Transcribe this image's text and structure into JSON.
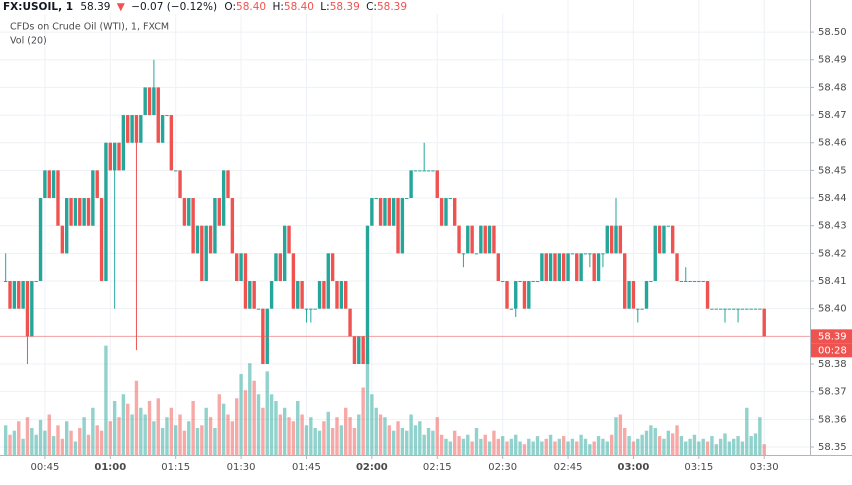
{
  "header": {
    "symbol": "FX:USOIL, 1",
    "last": "58.39",
    "arrow": "▼",
    "change": "−0.07 (−0.12%)",
    "ohlc": [
      {
        "label": "O:",
        "value": "58.40"
      },
      {
        "label": "H:",
        "value": "58.40"
      },
      {
        "label": "L:",
        "value": "58.39"
      },
      {
        "label": "C:",
        "value": "58.39"
      }
    ]
  },
  "chart_data": {
    "type": "candlestick",
    "subtitle": "CFDs on Crude Oil (WTI), 1, FXCM",
    "volume_label": "Vol (20)",
    "up_color": "#26a69a",
    "down_color": "#ef5350",
    "last_price": 58.39,
    "countdown": "00:28",
    "xlim": [
      -1.3,
      184.5
    ],
    "xticks": [
      {
        "value": 9,
        "label": "00:45"
      },
      {
        "value": 24,
        "label": "01:00"
      },
      {
        "value": 39,
        "label": "01:15"
      },
      {
        "value": 54,
        "label": "01:30"
      },
      {
        "value": 69,
        "label": "01:45"
      },
      {
        "value": 84,
        "label": "02:00"
      },
      {
        "value": 99,
        "label": "02:15"
      },
      {
        "value": 114,
        "label": "02:30"
      },
      {
        "value": 129,
        "label": "02:45"
      },
      {
        "value": 144,
        "label": "03:00"
      },
      {
        "value": 159,
        "label": "03:15"
      },
      {
        "value": 174,
        "label": "03:30"
      }
    ],
    "ylim": [
      58.3471,
      58.5116
    ],
    "yticks": [
      58.35,
      58.36,
      58.37,
      58.38,
      58.39,
      {
        "value": 58.4,
        "label": "58.40"
      },
      58.41,
      58.42,
      58.43,
      58.44,
      58.45,
      58.46,
      58.47,
      58.48,
      58.49,
      {
        "value": 58.5,
        "label": "58.50"
      }
    ],
    "grid": true,
    "candles": {
      "open": [
        58.41,
        58.41,
        58.4,
        58.41,
        58.4,
        58.41,
        58.39,
        58.41,
        58.41,
        58.44,
        58.45,
        58.44,
        58.45,
        58.43,
        58.42,
        58.44,
        58.43,
        58.44,
        58.43,
        58.44,
        58.43,
        58.45,
        58.44,
        58.41,
        58.46,
        58.45,
        58.46,
        58.45,
        58.47,
        58.46,
        58.47,
        58.46,
        58.47,
        58.48,
        58.47,
        58.48,
        58.46,
        58.47,
        58.47,
        58.45,
        58.45,
        58.44,
        58.43,
        58.44,
        58.42,
        58.43,
        58.41,
        58.43,
        58.42,
        58.44,
        58.43,
        58.45,
        58.44,
        58.42,
        58.41,
        58.42,
        58.4,
        58.41,
        58.4,
        58.4,
        58.38,
        58.4,
        58.41,
        58.42,
        58.41,
        58.43,
        58.42,
        58.4,
        58.41,
        58.4,
        58.4,
        58.4,
        58.4,
        58.41,
        58.4,
        58.42,
        58.41,
        58.4,
        58.41,
        58.4,
        58.39,
        58.38,
        58.39,
        58.38,
        58.43,
        58.44,
        58.44,
        58.43,
        58.44,
        58.43,
        58.44,
        58.42,
        58.44,
        58.44,
        58.45,
        58.45,
        58.45,
        58.45,
        58.45,
        58.45,
        58.44,
        58.43,
        58.44,
        58.44,
        58.43,
        58.42,
        58.42,
        58.43,
        58.42,
        58.42,
        58.43,
        58.42,
        58.43,
        58.42,
        58.41,
        58.41,
        58.4,
        58.4,
        58.41,
        58.41,
        58.4,
        58.41,
        58.41,
        58.41,
        58.42,
        58.41,
        58.42,
        58.41,
        58.42,
        58.41,
        58.42,
        58.42,
        58.41,
        58.42,
        58.42,
        58.42,
        58.41,
        58.42,
        58.42,
        58.43,
        58.42,
        58.43,
        58.42,
        58.4,
        58.41,
        58.4,
        58.4,
        58.4,
        58.41,
        58.41,
        58.43,
        58.42,
        58.43,
        58.43,
        58.42,
        58.41,
        58.41,
        58.41,
        58.41,
        58.41,
        58.41,
        58.41,
        58.4,
        58.4,
        58.4,
        58.4,
        58.4,
        58.4,
        58.4,
        58.4,
        58.4,
        58.4,
        58.4,
        58.4,
        58.4
      ],
      "high": [
        58.42,
        58.41,
        58.41,
        58.41,
        58.41,
        58.41,
        58.41,
        58.41,
        58.44,
        58.45,
        58.45,
        58.45,
        58.45,
        58.43,
        58.44,
        58.44,
        58.44,
        58.44,
        58.44,
        58.44,
        58.45,
        58.45,
        58.44,
        58.46,
        58.46,
        58.46,
        58.46,
        58.47,
        58.47,
        58.47,
        58.47,
        58.47,
        58.48,
        58.48,
        58.49,
        58.48,
        58.47,
        58.47,
        58.47,
        58.45,
        58.45,
        58.44,
        58.44,
        58.44,
        58.43,
        58.43,
        58.43,
        58.43,
        58.44,
        58.44,
        58.45,
        58.45,
        58.44,
        58.42,
        58.42,
        58.42,
        58.41,
        58.41,
        58.4,
        58.4,
        58.4,
        58.41,
        58.42,
        58.42,
        58.43,
        58.43,
        58.42,
        58.41,
        58.41,
        58.4,
        58.4,
        58.4,
        58.41,
        58.41,
        58.42,
        58.42,
        58.41,
        58.41,
        58.41,
        58.4,
        58.39,
        58.39,
        58.39,
        58.43,
        58.44,
        58.44,
        58.44,
        58.44,
        58.44,
        58.44,
        58.44,
        58.44,
        58.44,
        58.45,
        58.45,
        58.45,
        58.46,
        58.45,
        58.45,
        58.45,
        58.44,
        58.44,
        58.44,
        58.44,
        58.43,
        58.42,
        58.43,
        58.43,
        58.42,
        58.43,
        58.43,
        58.43,
        58.43,
        58.42,
        58.41,
        58.41,
        58.4,
        58.41,
        58.41,
        58.41,
        58.41,
        58.41,
        58.41,
        58.42,
        58.42,
        58.42,
        58.42,
        58.42,
        58.42,
        58.42,
        58.42,
        58.42,
        58.42,
        58.42,
        58.42,
        58.42,
        58.42,
        58.42,
        58.43,
        58.43,
        58.44,
        58.43,
        58.42,
        58.41,
        58.41,
        58.4,
        58.4,
        58.41,
        58.41,
        58.43,
        58.43,
        58.43,
        58.43,
        58.43,
        58.42,
        58.41,
        58.415,
        58.41,
        58.41,
        58.41,
        58.41,
        58.41,
        58.4,
        58.4,
        58.4,
        58.4,
        58.4,
        58.4,
        58.4,
        58.4,
        58.4,
        58.4,
        58.4,
        58.4,
        58.4
      ],
      "low": [
        58.41,
        58.4,
        58.4,
        58.4,
        58.4,
        58.38,
        58.39,
        58.41,
        58.41,
        58.44,
        58.44,
        58.44,
        58.43,
        58.42,
        58.42,
        58.43,
        58.43,
        58.43,
        58.43,
        58.43,
        58.43,
        58.44,
        58.41,
        58.41,
        58.45,
        58.4,
        58.45,
        58.45,
        58.46,
        58.46,
        58.385,
        58.46,
        58.47,
        58.47,
        58.47,
        58.46,
        58.46,
        58.47,
        58.45,
        58.45,
        58.44,
        58.43,
        58.43,
        58.42,
        58.42,
        58.41,
        58.41,
        58.42,
        58.42,
        58.43,
        58.43,
        58.44,
        58.42,
        58.41,
        58.41,
        58.4,
        58.4,
        58.4,
        58.4,
        58.38,
        58.38,
        58.4,
        58.41,
        58.41,
        58.41,
        58.42,
        58.4,
        58.4,
        58.4,
        58.395,
        58.395,
        58.4,
        58.4,
        58.4,
        58.4,
        58.41,
        58.4,
        58.4,
        58.4,
        58.39,
        58.38,
        58.38,
        58.38,
        58.38,
        58.43,
        58.44,
        58.43,
        58.43,
        58.43,
        58.43,
        58.42,
        58.42,
        58.44,
        58.44,
        58.45,
        58.45,
        58.45,
        58.45,
        58.45,
        58.44,
        58.43,
        58.43,
        58.44,
        58.43,
        58.42,
        58.415,
        58.42,
        58.42,
        58.42,
        58.42,
        58.42,
        58.42,
        58.42,
        58.41,
        58.41,
        58.4,
        58.4,
        58.397,
        58.41,
        58.4,
        58.4,
        58.41,
        58.41,
        58.41,
        58.41,
        58.41,
        58.41,
        58.41,
        58.41,
        58.41,
        58.42,
        58.41,
        58.41,
        58.42,
        58.415,
        58.41,
        58.41,
        58.415,
        58.42,
        58.42,
        58.42,
        58.42,
        58.4,
        58.4,
        58.4,
        58.395,
        58.4,
        58.4,
        58.41,
        58.41,
        58.42,
        58.42,
        58.43,
        58.42,
        58.41,
        58.41,
        58.41,
        58.41,
        58.41,
        58.41,
        58.41,
        58.4,
        58.4,
        58.4,
        58.4,
        58.395,
        58.4,
        58.4,
        58.395,
        58.4,
        58.4,
        58.4,
        58.4,
        58.4,
        58.39
      ],
      "close": [
        58.41,
        58.4,
        58.41,
        58.4,
        58.41,
        58.39,
        58.41,
        58.41,
        58.44,
        58.45,
        58.44,
        58.45,
        58.43,
        58.42,
        58.44,
        58.43,
        58.44,
        58.43,
        58.44,
        58.43,
        58.45,
        58.44,
        58.41,
        58.46,
        58.45,
        58.46,
        58.45,
        58.47,
        58.46,
        58.47,
        58.46,
        58.47,
        58.48,
        58.47,
        58.48,
        58.46,
        58.47,
        58.47,
        58.45,
        58.45,
        58.44,
        58.43,
        58.44,
        58.42,
        58.43,
        58.41,
        58.43,
        58.42,
        58.44,
        58.43,
        58.45,
        58.44,
        58.42,
        58.41,
        58.42,
        58.4,
        58.41,
        58.4,
        58.4,
        58.38,
        58.4,
        58.41,
        58.42,
        58.41,
        58.43,
        58.42,
        58.4,
        58.41,
        58.4,
        58.4,
        58.4,
        58.4,
        58.41,
        58.4,
        58.42,
        58.41,
        58.4,
        58.41,
        58.4,
        58.39,
        58.38,
        58.39,
        58.38,
        58.43,
        58.44,
        58.44,
        58.43,
        58.44,
        58.43,
        58.44,
        58.42,
        58.44,
        58.44,
        58.45,
        58.45,
        58.45,
        58.45,
        58.45,
        58.45,
        58.44,
        58.43,
        58.44,
        58.44,
        58.43,
        58.42,
        58.42,
        58.43,
        58.42,
        58.42,
        58.43,
        58.42,
        58.43,
        58.42,
        58.41,
        58.41,
        58.4,
        58.4,
        58.41,
        58.41,
        58.4,
        58.41,
        58.41,
        58.41,
        58.42,
        58.41,
        58.42,
        58.41,
        58.42,
        58.41,
        58.42,
        58.42,
        58.41,
        58.42,
        58.42,
        58.42,
        58.41,
        58.42,
        58.42,
        58.43,
        58.42,
        58.43,
        58.42,
        58.4,
        58.41,
        58.4,
        58.4,
        58.4,
        58.41,
        58.41,
        58.43,
        58.42,
        58.43,
        58.43,
        58.42,
        58.41,
        58.41,
        58.41,
        58.41,
        58.41,
        58.41,
        58.41,
        58.4,
        58.4,
        58.4,
        58.4,
        58.4,
        58.4,
        58.4,
        58.4,
        58.4,
        58.4,
        58.4,
        58.4,
        58.4,
        58.39
      ],
      "volume": [
        22,
        15,
        18,
        25,
        12,
        28,
        20,
        15,
        26,
        18,
        30,
        14,
        22,
        12,
        25,
        18,
        10,
        20,
        28,
        15,
        35,
        22,
        18,
        81,
        25,
        40,
        28,
        45,
        38,
        30,
        55,
        35,
        30,
        40,
        25,
        42,
        20,
        28,
        35,
        22,
        30,
        18,
        25,
        40,
        20,
        22,
        35,
        28,
        20,
        45,
        38,
        30,
        25,
        42,
        60,
        48,
        68,
        55,
        45,
        35,
        62,
        45,
        40,
        30,
        35,
        28,
        25,
        40,
        30,
        22,
        28,
        20,
        18,
        25,
        32,
        20,
        28,
        22,
        35,
        28,
        20,
        30,
        50,
        78,
        45,
        35,
        30,
        28,
        22,
        18,
        25,
        20,
        18,
        30,
        22,
        25,
        15,
        20,
        18,
        28,
        15,
        12,
        10,
        18,
        14,
        12,
        15,
        10,
        20,
        12,
        15,
        10,
        18,
        12,
        14,
        10,
        12,
        15,
        10,
        8,
        12,
        10,
        14,
        10,
        12,
        15,
        10,
        12,
        14,
        10,
        12,
        10,
        15,
        12,
        8,
        10,
        14,
        12,
        10,
        15,
        28,
        30,
        20,
        14,
        10,
        12,
        15,
        18,
        22,
        20,
        14,
        12,
        18,
        16,
        22,
        14,
        10,
        12,
        15,
        10,
        12,
        10,
        14,
        8,
        12,
        16,
        10,
        12,
        14,
        10,
        35,
        14,
        16,
        28,
        8
      ]
    }
  }
}
